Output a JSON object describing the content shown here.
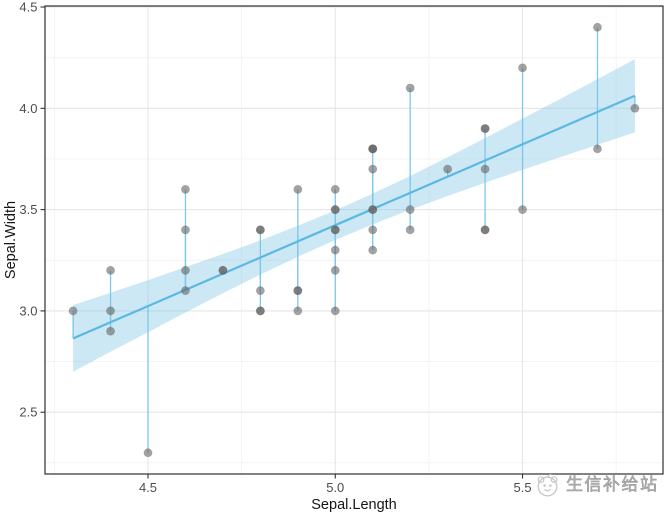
{
  "chart_data": {
    "type": "scatter",
    "title": "",
    "xlabel": "Sepal.Length",
    "ylabel": "Sepal.Width",
    "xlim": [
      4.225,
      5.875
    ],
    "ylim": [
      2.195,
      4.505
    ],
    "x_ticks": [
      4.5,
      5.0,
      5.5
    ],
    "y_ticks": [
      2.5,
      3.0,
      3.5,
      4.0,
      4.5
    ],
    "x_minor_gridlines": [
      4.25,
      4.75,
      5.25,
      5.75
    ],
    "y_minor_gridlines": [
      2.25,
      2.75,
      3.25,
      3.75,
      4.25
    ],
    "grid": true,
    "legend_position": "none",
    "points": [
      [
        5.1,
        3.5
      ],
      [
        4.9,
        3.0
      ],
      [
        4.7,
        3.2
      ],
      [
        4.6,
        3.1
      ],
      [
        5.0,
        3.6
      ],
      [
        5.4,
        3.9
      ],
      [
        4.6,
        3.4
      ],
      [
        5.0,
        3.4
      ],
      [
        4.4,
        2.9
      ],
      [
        4.9,
        3.1
      ],
      [
        5.4,
        3.7
      ],
      [
        4.8,
        3.4
      ],
      [
        4.8,
        3.0
      ],
      [
        4.3,
        3.0
      ],
      [
        5.8,
        4.0
      ],
      [
        5.7,
        4.4
      ],
      [
        5.4,
        3.9
      ],
      [
        5.1,
        3.5
      ],
      [
        5.7,
        3.8
      ],
      [
        5.1,
        3.8
      ],
      [
        5.4,
        3.4
      ],
      [
        5.1,
        3.7
      ],
      [
        4.6,
        3.6
      ],
      [
        5.1,
        3.3
      ],
      [
        4.8,
        3.4
      ],
      [
        5.0,
        3.0
      ],
      [
        5.0,
        3.4
      ],
      [
        5.2,
        3.5
      ],
      [
        5.2,
        3.4
      ],
      [
        4.7,
        3.2
      ],
      [
        4.8,
        3.1
      ],
      [
        5.4,
        3.4
      ],
      [
        5.2,
        4.1
      ],
      [
        5.5,
        4.2
      ],
      [
        4.9,
        3.1
      ],
      [
        5.0,
        3.2
      ],
      [
        5.5,
        3.5
      ],
      [
        4.9,
        3.6
      ],
      [
        4.4,
        3.0
      ],
      [
        5.1,
        3.4
      ],
      [
        5.0,
        3.5
      ],
      [
        4.5,
        2.3
      ],
      [
        4.4,
        3.2
      ],
      [
        5.0,
        3.5
      ],
      [
        5.1,
        3.8
      ],
      [
        4.8,
        3.0
      ],
      [
        5.1,
        3.8
      ],
      [
        4.6,
        3.2
      ],
      [
        5.3,
        3.7
      ],
      [
        5.0,
        3.3
      ]
    ],
    "regression_line": {
      "slope": 0.7985,
      "intercept": -0.5694,
      "x_start": 4.3,
      "x_end": 5.8
    },
    "confidence_band": [
      [
        4.3,
        2.7,
        3.029
      ],
      [
        4.4,
        2.798,
        3.09
      ],
      [
        4.5,
        2.895,
        3.152
      ],
      [
        4.6,
        2.992,
        3.216
      ],
      [
        4.7,
        3.087,
        3.281
      ],
      [
        4.8,
        3.179,
        3.348
      ],
      [
        4.9,
        3.267,
        3.42
      ],
      [
        5.0,
        3.35,
        3.496
      ],
      [
        5.1,
        3.427,
        3.579
      ],
      [
        5.2,
        3.499,
        3.666
      ],
      [
        5.3,
        3.567,
        3.758
      ],
      [
        5.4,
        3.633,
        3.853
      ],
      [
        5.5,
        3.696,
        3.949
      ],
      [
        5.6,
        3.758,
        4.046
      ],
      [
        5.7,
        3.82,
        4.144
      ],
      [
        5.8,
        3.881,
        4.243
      ]
    ]
  },
  "watermark": {
    "text": "生信补给站"
  },
  "colors": {
    "background": "#ffffff",
    "point": "#666666",
    "point_opacity": 0.6,
    "smooth_line": "#59B9E3",
    "segment": "#7CC8E9",
    "ribbon": "#7CC3E6",
    "ribbon_opacity": 0.38,
    "grid_major": "#E6E6E6",
    "grid_minor": "#F2F2F2",
    "panel_border": "#2E2E2E",
    "tick_mark": "#333333",
    "tick_label": "#4D4D4D",
    "axis_title": "#151515",
    "watermark": "#B7B7B7"
  }
}
